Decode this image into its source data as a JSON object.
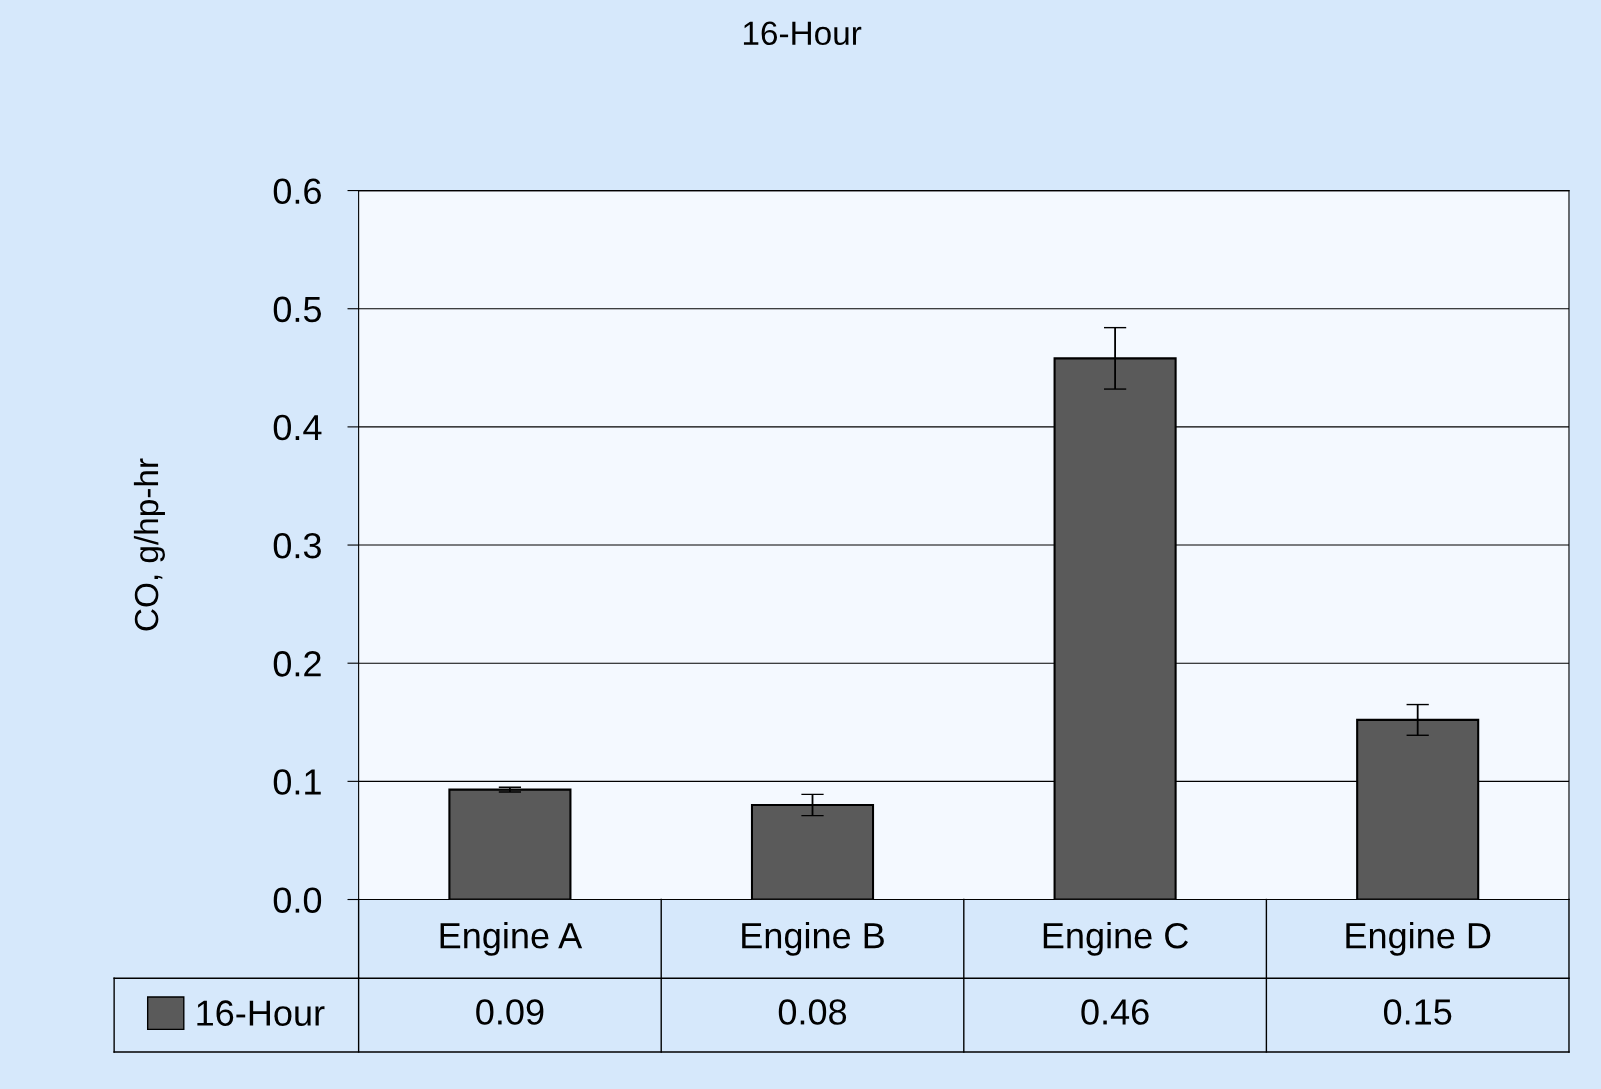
{
  "chart_data": {
    "type": "bar",
    "title": "16-Hour",
    "ylabel": "CO, g/hp-hr",
    "categories": [
      "Engine A",
      "Engine B",
      "Engine C",
      "Engine D"
    ],
    "series": [
      {
        "name": "16-Hour",
        "color": "#5a5a5a",
        "values": [
          0.093,
          0.08,
          0.458,
          0.152
        ],
        "errors": [
          0.002,
          0.009,
          0.026,
          0.013
        ],
        "value_labels": [
          "0.09",
          "0.08",
          "0.46",
          "0.15"
        ]
      }
    ],
    "ylim": [
      0,
      0.6
    ],
    "yticks": [
      {
        "value": 0,
        "label": "0.0"
      },
      0.1,
      0.2,
      0.3,
      0.4,
      0.5,
      0.6
    ],
    "grid": "y",
    "legend": "bottom left"
  }
}
